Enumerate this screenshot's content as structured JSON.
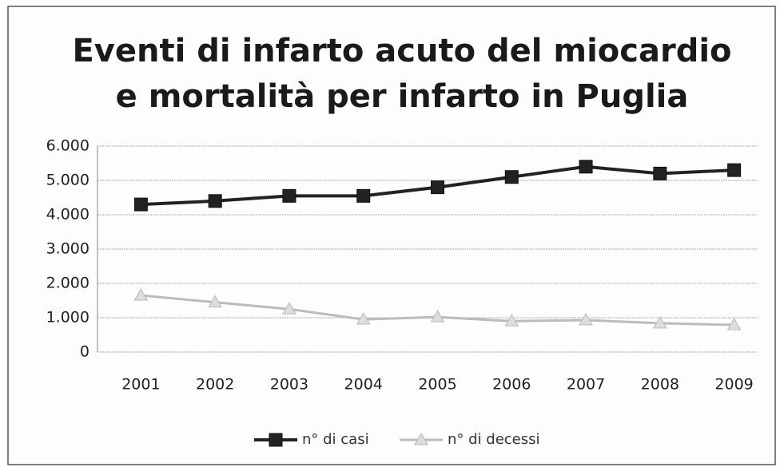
{
  "chart_data": {
    "type": "line",
    "title": [
      "Eventi di infarto acuto del miocardio",
      "e mortalità per infarto in Puglia"
    ],
    "categories": [
      "2001",
      "2002",
      "2003",
      "2004",
      "2005",
      "2006",
      "2007",
      "2008",
      "2009"
    ],
    "series": [
      {
        "name": "n° di casi",
        "color": "#222222",
        "marker": "square",
        "values": [
          4300,
          4400,
          4550,
          4550,
          4800,
          5100,
          5400,
          5200,
          5300
        ]
      },
      {
        "name": "n° di decessi",
        "color": "#bbbbbb",
        "marker": "triangle",
        "values": [
          1650,
          1450,
          1250,
          950,
          1020,
          900,
          930,
          840,
          790
        ]
      }
    ],
    "ylim": [
      0,
      6000
    ],
    "yticks": [
      0,
      {
        "value": 1000,
        "label": "1.000"
      },
      {
        "value": 2000,
        "label": "2.000"
      },
      {
        "value": 3000,
        "label": "3.000"
      },
      {
        "value": 4000,
        "label": "4.000"
      },
      {
        "value": 5000,
        "label": "5.000"
      },
      {
        "value": 6000,
        "label": "6.000"
      }
    ],
    "grid": true,
    "legend": "bottom"
  }
}
